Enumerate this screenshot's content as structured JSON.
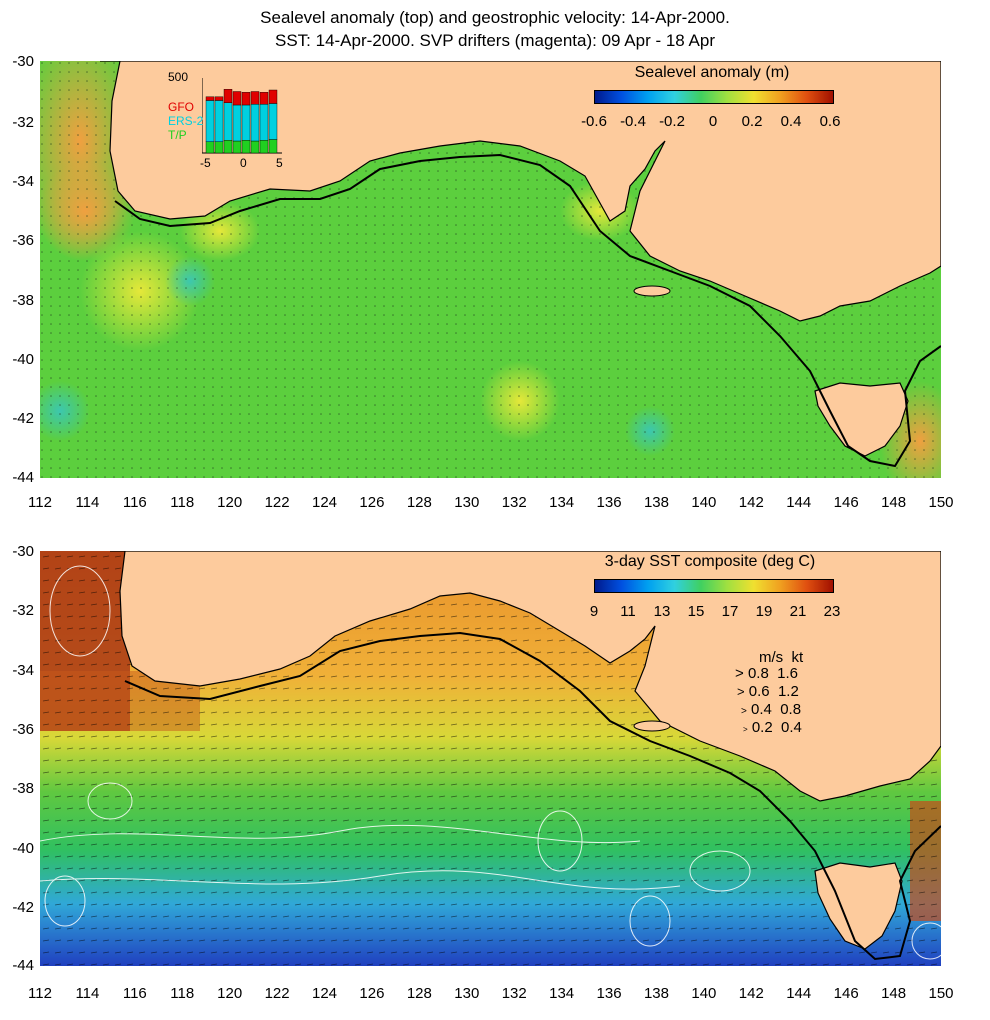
{
  "title": {
    "line1": "Sealevel anomaly (top) and geostrophic velocity: 14-Apr-2000.",
    "line2": "SST: 14-Apr-2000. SVP drifters (magenta): 09 Apr - 18 Apr"
  },
  "axes": {
    "lat_labels": [
      "-30",
      "-32",
      "-34",
      "-36",
      "-38",
      "-40",
      "-42",
      "-44"
    ],
    "lon_labels": [
      "112",
      "114",
      "116",
      "118",
      "120",
      "122",
      "124",
      "126",
      "128",
      "130",
      "132",
      "134",
      "136",
      "138",
      "140",
      "142",
      "144",
      "146",
      "148",
      "150"
    ]
  },
  "top_panel": {
    "colorbar_title": "Sealevel anomaly (m)",
    "colorbar_labels": [
      "-0.6",
      "-0.4",
      "-0.2",
      "0",
      "0.2",
      "0.4",
      "0.6"
    ],
    "inset": {
      "ymax_label": "500",
      "x_labels": [
        "-5",
        "0",
        "5"
      ],
      "satellites": [
        {
          "name": "GFO",
          "color": "#e00000"
        },
        {
          "name": "ERS-2",
          "color": "#00d0e0"
        },
        {
          "name": "T/P",
          "color": "#20d020"
        }
      ],
      "bars": [
        {
          "tp": 0.15,
          "ers": 0.55,
          "gfo": 0.05
        },
        {
          "tp": 0.15,
          "ers": 0.55,
          "gfo": 0.05
        },
        {
          "tp": 0.17,
          "ers": 0.5,
          "gfo": 0.18
        },
        {
          "tp": 0.16,
          "ers": 0.48,
          "gfo": 0.18
        },
        {
          "tp": 0.17,
          "ers": 0.47,
          "gfo": 0.17
        },
        {
          "tp": 0.16,
          "ers": 0.49,
          "gfo": 0.17
        },
        {
          "tp": 0.17,
          "ers": 0.48,
          "gfo": 0.16
        },
        {
          "tp": 0.18,
          "ers": 0.48,
          "gfo": 0.18
        }
      ]
    }
  },
  "bottom_panel": {
    "colorbar_title": "3-day SST composite (deg C)",
    "colorbar_labels": [
      "9",
      "11",
      "13",
      "15",
      "17",
      "19",
      "21",
      "23"
    ],
    "velocity_key": {
      "header": "m/s  kt",
      "rows": [
        "0.8  1.6",
        "0.6  1.2",
        "0.4  0.8",
        "0.2  0.4"
      ]
    }
  },
  "colors": {
    "land": "#fdcb9d",
    "coast": "#000000",
    "ssh_bg": "#4fcf3c",
    "sst_bg": "#e89a2e"
  }
}
